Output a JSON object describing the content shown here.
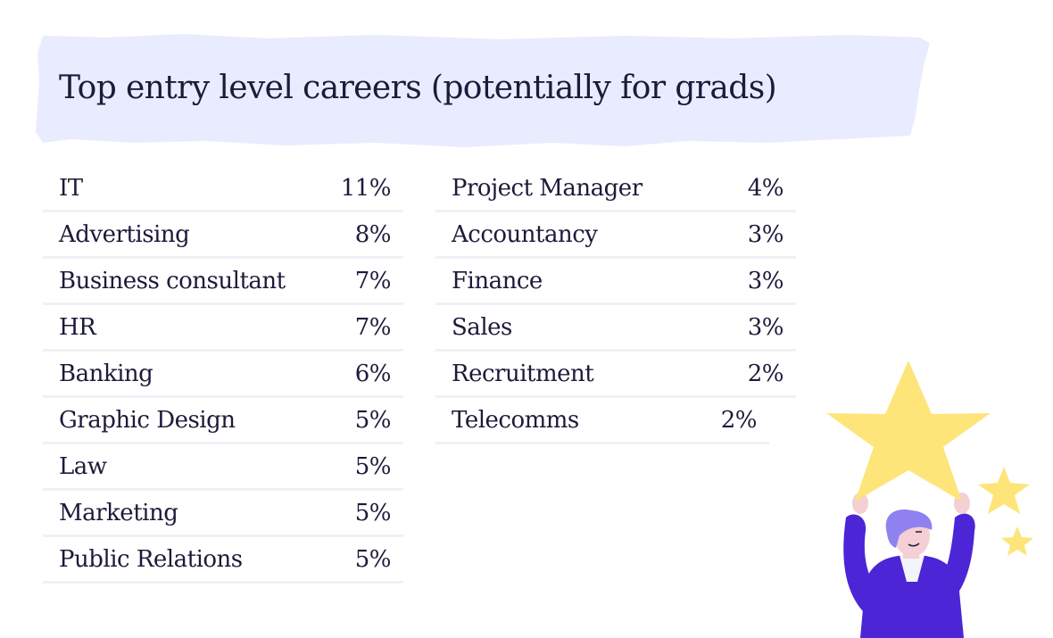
{
  "title": "Top entry level careers (potentially for grads)",
  "left_table": [
    {
      "career": "IT",
      "percent": "11%"
    },
    {
      "career": "Advertising",
      "percent": "8%"
    },
    {
      "career": "Business consultant",
      "percent": "7%"
    },
    {
      "career": "HR",
      "percent": "7%"
    },
    {
      "career": "Banking",
      "percent": "6%"
    },
    {
      "career": "Graphic Design",
      "percent": "5%"
    },
    {
      "career": "Law",
      "percent": "5%"
    },
    {
      "career": "Marketing",
      "percent": "5%"
    },
    {
      "career": "Public Relations",
      "percent": "5%"
    }
  ],
  "right_table": [
    {
      "career": "Project Manager",
      "percent": "4%"
    },
    {
      "career": "Accountancy",
      "percent": "3%"
    },
    {
      "career": "Finance",
      "percent": "3%"
    },
    {
      "career": "Sales",
      "percent": "3%"
    },
    {
      "career": "Recruitment",
      "percent": "2%"
    },
    {
      "career": "Telecomms",
      "percent": "2%"
    }
  ],
  "colors": {
    "banner": "#e9ecfe",
    "text": "#1c1b3a",
    "divider": "#eef1f6",
    "star": "#fde57a",
    "shirt": "#4b25d6",
    "hair": "#8f82f0",
    "skin": "#f4cfd3"
  }
}
